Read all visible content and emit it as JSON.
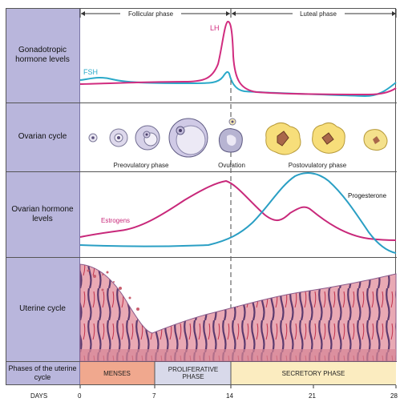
{
  "rows": {
    "gonadotropic": "Gonadotropic hormone levels",
    "ovarian_cycle": "Ovarian cycle",
    "ovarian_hormone": "Ovarian hormone levels",
    "uterine_cycle": "Uterine cycle",
    "phases_uterine": "Phases of the uterine cycle"
  },
  "top_phases": {
    "follicular": "Follicular phase",
    "luteal": "Luteal phase"
  },
  "gonadotropic_labels": {
    "lh": "LH",
    "fsh": "FSH"
  },
  "ovarian_labels": {
    "preovulatory": "Preovulatory phase",
    "ovulation": "Ovulation",
    "postovulatory": "Postovulatory phase"
  },
  "hormone_labels": {
    "estrogens": "Estrogens",
    "progesterone": "Progesterone"
  },
  "uterine_phases": {
    "menses": "MENSES",
    "proliferative": "PROLIFERATIVE PHASE",
    "secretory": "SECRETORY PHASE"
  },
  "days": {
    "label": "DAYS",
    "ticks": [
      "0",
      "7",
      "14",
      "21",
      "28"
    ]
  },
  "colors": {
    "lh": "#d12c7f",
    "fsh": "#2aa9c9",
    "estrogen": "#c8287a",
    "progesterone": "#2a9fc4",
    "sidebar": "#b9b6dc",
    "menses": "#f0a88e",
    "proliferative": "#d8d9ea",
    "secretory": "#fbecc0"
  }
}
